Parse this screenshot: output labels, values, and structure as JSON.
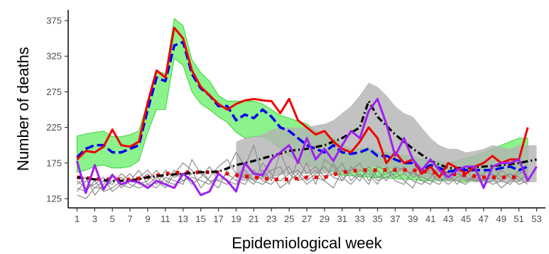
{
  "chart_data": {
    "type": "line",
    "title": "",
    "xlabel": "Epidemiological week",
    "ylabel": "Number of deaths",
    "xlim": [
      0,
      54
    ],
    "ylim": [
      112,
      390
    ],
    "x_ticks": [
      1,
      3,
      5,
      7,
      9,
      11,
      13,
      15,
      17,
      19,
      21,
      23,
      25,
      27,
      29,
      31,
      33,
      35,
      37,
      39,
      41,
      43,
      45,
      47,
      49,
      51,
      53
    ],
    "y_ticks": [
      125,
      175,
      225,
      275,
      325,
      375
    ],
    "grid": false,
    "legend": "none",
    "colors": {
      "green_band": "#66ee66",
      "gray_band": "#b3b3b3",
      "red": "#ee0000",
      "blue": "#0000ee",
      "purple": "#a020f0",
      "black": "#000000",
      "gray_lines": "#8c8c8c"
    },
    "bands": [
      {
        "color": "green",
        "x": [
          1,
          2,
          3,
          4,
          5,
          6,
          7,
          8,
          9,
          10,
          11,
          12,
          13,
          14,
          15,
          16,
          17,
          18,
          19,
          20,
          21,
          22,
          23,
          24,
          25,
          26,
          27,
          28,
          29,
          30,
          31,
          32,
          33,
          34,
          35,
          36,
          37,
          38,
          39,
          40,
          41,
          42,
          43,
          44,
          45,
          46,
          47,
          48,
          49,
          50,
          51,
          52
        ],
        "upper": [
          213,
          216,
          218,
          220,
          212,
          212,
          215,
          220,
          262,
          305,
          300,
          378,
          368,
          320,
          302,
          290,
          270,
          262,
          262,
          262,
          262,
          258,
          250,
          242,
          238,
          234,
          230,
          220,
          215,
          210,
          200,
          195,
          195,
          197,
          190,
          190,
          188,
          186,
          184,
          180,
          178,
          178,
          175,
          178,
          182,
          185,
          190,
          195,
          200,
          205,
          210,
          210
        ],
        "lower": [
          162,
          165,
          170,
          172,
          168,
          168,
          170,
          178,
          218,
          250,
          250,
          322,
          312,
          275,
          258,
          250,
          240,
          232,
          218,
          210,
          212,
          212,
          205,
          195,
          185,
          178,
          172,
          168,
          165,
          162,
          158,
          157,
          156,
          155,
          154,
          154,
          153,
          152,
          152,
          150,
          150,
          150,
          150,
          150,
          148,
          150,
          152,
          152,
          152,
          155,
          155,
          152
        ]
      },
      {
        "color": "gray",
        "x": [
          19,
          20,
          21,
          22,
          23,
          24,
          25,
          26,
          27,
          28,
          29,
          30,
          31,
          32,
          33,
          34,
          35,
          36,
          37,
          38,
          39,
          40,
          41,
          42,
          43,
          44,
          45,
          46,
          47,
          48,
          49,
          50,
          51,
          52,
          53
        ],
        "upper": [
          205,
          210,
          212,
          215,
          222,
          225,
          225,
          225,
          225,
          228,
          230,
          235,
          245,
          255,
          270,
          288,
          282,
          270,
          255,
          245,
          240,
          225,
          210,
          200,
          195,
          195,
          190,
          192,
          195,
          200,
          198,
          195,
          200,
          200,
          200
        ],
        "lower": [
          150,
          150,
          152,
          152,
          155,
          158,
          160,
          160,
          160,
          160,
          160,
          162,
          162,
          162,
          165,
          168,
          170,
          168,
          165,
          160,
          158,
          155,
          152,
          150,
          150,
          150,
          150,
          148,
          148,
          148,
          148,
          148,
          148,
          148,
          148
        ]
      }
    ],
    "series": [
      {
        "color": "red",
        "style": "solid",
        "x": [
          1,
          2,
          3,
          4,
          5,
          6,
          7,
          8,
          9,
          10,
          11,
          12,
          13,
          14,
          15,
          16,
          17,
          18,
          19,
          20,
          21,
          22,
          23,
          24,
          25,
          26,
          27,
          28,
          29,
          30,
          31,
          32,
          33,
          34,
          35,
          36,
          37,
          38,
          39,
          40,
          41,
          42,
          43,
          44,
          45,
          46,
          47,
          48,
          49,
          50,
          51,
          52
        ],
        "y": [
          180,
          192,
          190,
          198,
          222,
          200,
          198,
          205,
          260,
          305,
          295,
          365,
          350,
          305,
          282,
          270,
          258,
          250,
          258,
          263,
          265,
          263,
          262,
          245,
          265,
          235,
          225,
          215,
          220,
          205,
          195,
          190,
          205,
          225,
          210,
          175,
          190,
          175,
          180,
          160,
          170,
          155,
          175,
          168,
          160,
          170,
          175,
          185,
          175,
          180,
          180,
          225
        ]
      },
      {
        "color": "blue",
        "style": "dashed",
        "x": [
          1,
          2,
          3,
          4,
          5,
          6,
          7,
          8,
          9,
          10,
          11,
          12,
          13,
          14,
          15,
          16,
          17,
          18,
          19,
          20,
          21,
          22,
          23,
          24,
          25,
          26,
          27,
          28,
          29,
          30,
          31,
          32,
          33,
          34,
          35,
          36,
          37,
          38,
          39,
          40,
          41,
          42,
          43,
          44,
          45,
          46,
          47,
          48,
          49,
          50,
          51,
          52
        ],
        "y": [
          183,
          195,
          200,
          200,
          190,
          190,
          195,
          200,
          250,
          295,
          290,
          340,
          345,
          300,
          280,
          270,
          255,
          255,
          235,
          243,
          238,
          250,
          240,
          225,
          220,
          210,
          200,
          195,
          190,
          200,
          190,
          188,
          190,
          195,
          185,
          185,
          180,
          175,
          175,
          165,
          172,
          168,
          163,
          165,
          165,
          165,
          165,
          165,
          168,
          170,
          165,
          170
        ]
      },
      {
        "color": "purple",
        "style": "solid",
        "x": [
          1,
          2,
          3,
          4,
          5,
          6,
          7,
          8,
          9,
          10,
          11,
          12,
          13,
          14,
          15,
          16,
          17,
          18,
          19,
          20,
          21,
          22,
          23,
          24,
          25,
          26,
          27,
          28,
          29,
          30,
          31,
          32,
          33,
          34,
          35,
          36,
          37,
          38,
          39,
          40,
          41,
          42,
          43,
          44,
          45,
          46,
          47,
          48,
          49,
          50,
          51,
          52,
          53
        ],
        "y": [
          178,
          133,
          172,
          138,
          158,
          145,
          150,
          148,
          140,
          150,
          145,
          140,
          160,
          150,
          130,
          135,
          160,
          150,
          135,
          175,
          160,
          158,
          180,
          190,
          200,
          175,
          210,
          180,
          195,
          178,
          200,
          220,
          210,
          248,
          265,
          230,
          185,
          210,
          180,
          165,
          180,
          165,
          155,
          165,
          170,
          170,
          140,
          170,
          175,
          175,
          180,
          150,
          170
        ]
      },
      {
        "color": "black",
        "style": "dashdot",
        "x": [
          1,
          3,
          5,
          7,
          9,
          11,
          13,
          15,
          17,
          19,
          21,
          23,
          25,
          27,
          29,
          31,
          33,
          34,
          35,
          37,
          39,
          41,
          43,
          45,
          47,
          49,
          51,
          53
        ],
        "y": [
          155,
          152,
          150,
          150,
          155,
          158,
          160,
          162,
          163,
          172,
          178,
          185,
          192,
          195,
          200,
          210,
          225,
          262,
          240,
          215,
          195,
          178,
          168,
          168,
          170,
          172,
          175,
          180
        ]
      },
      {
        "color": "red",
        "style": "dotted",
        "x": [
          1,
          3,
          5,
          7,
          9,
          11,
          13,
          15,
          17,
          19,
          21,
          23,
          25,
          27,
          29,
          31,
          33,
          35,
          37,
          39,
          41,
          43,
          45,
          47,
          49,
          51
        ],
        "y": [
          155,
          153,
          152,
          152,
          155,
          160,
          162,
          162,
          162,
          158,
          155,
          152,
          152,
          155,
          155,
          162,
          165,
          165,
          165,
          165,
          162,
          160,
          158,
          155,
          155,
          155
        ]
      },
      {
        "color": "gray",
        "style": "thin",
        "x": [
          1,
          2,
          3,
          4,
          5,
          6,
          7,
          8,
          9,
          10,
          11,
          12,
          13,
          14,
          15,
          16,
          17,
          18,
          19,
          20,
          21,
          22,
          23,
          24,
          25,
          26,
          27,
          28,
          29,
          30,
          31,
          32,
          33,
          34,
          35,
          36,
          37,
          38,
          39,
          40,
          41,
          42,
          43,
          44,
          45,
          46,
          47,
          48,
          49,
          50,
          51,
          52
        ],
        "y": [
          130,
          125,
          140,
          150,
          145,
          160,
          150,
          155,
          165,
          150,
          140,
          160,
          175,
          165,
          140,
          155,
          170,
          180,
          160,
          165,
          150,
          175,
          160,
          140,
          150,
          160,
          145,
          155,
          150,
          140,
          165,
          160,
          150,
          170,
          155,
          160,
          165,
          150,
          140,
          165,
          160,
          150,
          155,
          150,
          145,
          160,
          150,
          155,
          140,
          150,
          165,
          155
        ]
      },
      {
        "color": "gray",
        "style": "thin",
        "x": [
          1,
          2,
          3,
          4,
          5,
          6,
          7,
          8,
          9,
          10,
          11,
          12,
          13,
          14,
          15,
          16,
          17,
          18,
          19,
          20,
          21,
          22,
          23,
          24,
          25,
          26,
          27,
          28,
          29,
          30,
          31,
          32,
          33,
          34,
          35,
          36,
          37,
          38,
          39,
          40,
          41,
          42,
          43,
          44,
          45,
          46,
          47,
          48,
          49,
          50,
          51,
          52
        ],
        "y": [
          145,
          155,
          130,
          145,
          160,
          140,
          150,
          165,
          145,
          140,
          155,
          150,
          145,
          180,
          160,
          150,
          140,
          165,
          190,
          170,
          200,
          155,
          165,
          170,
          145,
          180,
          160,
          170,
          155,
          160,
          175,
          150,
          165,
          160,
          145,
          170,
          155,
          160,
          150,
          145,
          155,
          170,
          160,
          145,
          165,
          150,
          160,
          170,
          155,
          160,
          150,
          160
        ]
      },
      {
        "color": "gray",
        "style": "thin",
        "x": [
          1,
          2,
          3,
          4,
          5,
          6,
          7,
          8,
          9,
          10,
          11,
          12,
          13,
          14,
          15,
          16,
          17,
          18,
          19,
          20,
          21,
          22,
          23,
          24,
          25,
          26,
          27,
          28,
          29,
          30,
          31,
          32,
          33,
          34,
          35,
          36,
          37,
          38,
          39,
          40,
          41,
          42,
          43,
          44,
          45,
          46,
          47,
          48,
          49,
          50,
          51,
          52
        ],
        "y": [
          140,
          135,
          150,
          135,
          140,
          150,
          160,
          145,
          150,
          165,
          150,
          145,
          150,
          160,
          165,
          150,
          150,
          145,
          160,
          155,
          145,
          165,
          150,
          190,
          160,
          150,
          175,
          145,
          180,
          170,
          150,
          165,
          175,
          150,
          165,
          150,
          170,
          165,
          160,
          155,
          150,
          145,
          160,
          165,
          150,
          155,
          145,
          150,
          165,
          155,
          145,
          150
        ]
      },
      {
        "color": "gray",
        "style": "thin",
        "x": [
          1,
          2,
          3,
          4,
          5,
          6,
          7,
          8,
          9,
          10,
          11,
          12,
          13,
          14,
          15,
          16,
          17,
          18,
          19,
          20,
          21,
          22,
          23,
          24,
          25,
          26,
          27,
          28,
          29,
          30,
          31,
          32,
          33,
          34,
          35,
          36,
          37,
          38,
          39,
          40,
          41,
          42,
          43,
          44,
          45,
          46,
          47,
          48,
          49,
          50,
          51,
          52
        ],
        "y": [
          150,
          140,
          145,
          155,
          135,
          145,
          140,
          150,
          160,
          145,
          165,
          155,
          160,
          145,
          155,
          170,
          150,
          160,
          150,
          145,
          165,
          150,
          145,
          160,
          170,
          150,
          155,
          165,
          150,
          175,
          155,
          145,
          160,
          145,
          170,
          165,
          150,
          145,
          165,
          150,
          145,
          165,
          150,
          160,
          155,
          150,
          150,
          160,
          150,
          145,
          160,
          165
        ]
      },
      {
        "color": "gray",
        "style": "thin",
        "x": [
          1,
          2,
          3,
          4,
          5,
          6,
          7,
          8,
          9,
          10,
          11,
          12,
          13,
          14,
          15,
          16,
          17,
          18,
          19,
          20,
          21,
          22,
          23,
          24,
          25,
          26,
          27,
          28,
          29,
          30,
          31,
          32,
          33,
          34,
          35,
          36,
          37,
          38,
          39,
          40,
          41,
          42,
          43,
          44,
          45,
          46,
          47,
          48,
          49,
          50,
          51,
          52
        ],
        "y": [
          135,
          150,
          140,
          140,
          150,
          155,
          145,
          140,
          145,
          155,
          145,
          165,
          150,
          155,
          150,
          145,
          160,
          150,
          145,
          160,
          150,
          145,
          155,
          150,
          160,
          165,
          150,
          160,
          170,
          155,
          150,
          170,
          155,
          165,
          150,
          155,
          160,
          170,
          155,
          160,
          165,
          155,
          145,
          155,
          160,
          165,
          155,
          145,
          150,
          160,
          155,
          145
        ]
      }
    ]
  }
}
